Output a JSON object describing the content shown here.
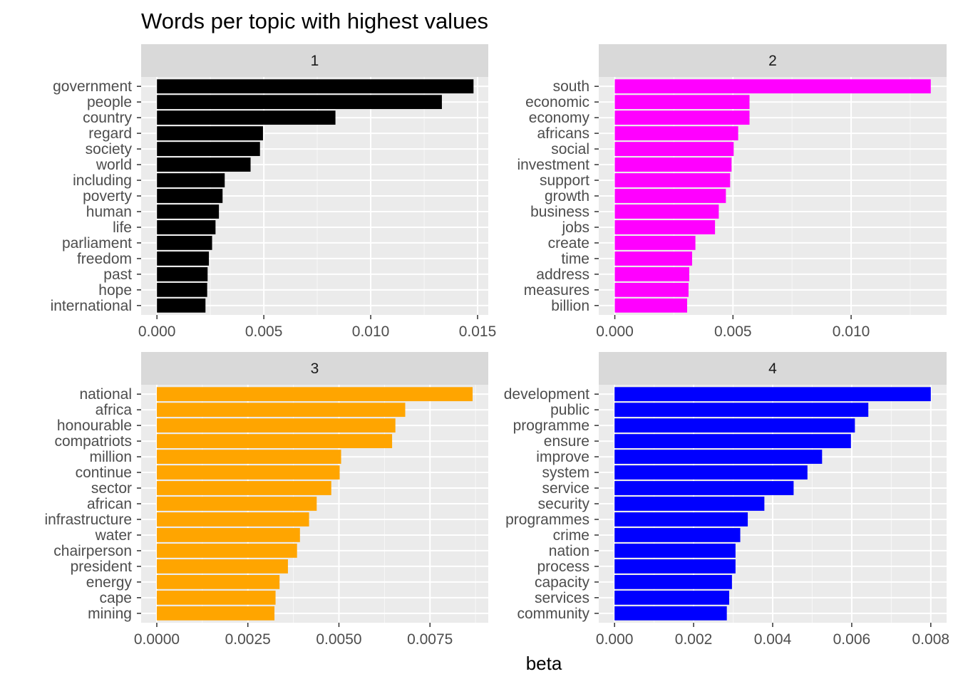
{
  "chart_data": {
    "type": "bar",
    "orientation": "horizontal",
    "title": "Words per topic with highest values",
    "xlabel": "beta",
    "ylabel": "",
    "grid": true,
    "legend": "none",
    "facets": [
      {
        "strip": "1",
        "color": "#000000",
        "xlim": [
          -0.00074,
          0.0155
        ],
        "xticks": [
          0,
          0.005,
          0.01,
          0.015
        ],
        "xtick_labels": [
          "0.000",
          "0.005",
          "0.010",
          "0.015"
        ],
        "categories": [
          "government",
          "people",
          "country",
          "regard",
          "society",
          "world",
          "including",
          "poverty",
          "human",
          "life",
          "parliament",
          "freedom",
          "past",
          "hope",
          "international"
        ],
        "values": [
          0.01481,
          0.01333,
          0.00835,
          0.00496,
          0.00482,
          0.00438,
          0.00317,
          0.00307,
          0.0029,
          0.00274,
          0.00258,
          0.00243,
          0.00237,
          0.00235,
          0.00227
        ]
      },
      {
        "strip": "2",
        "color": "#ff00ff",
        "xlim": [
          -0.00068,
          0.01404
        ],
        "xticks": [
          0,
          0.005,
          0.01
        ],
        "xtick_labels": [
          "0.000",
          "0.005",
          "0.010"
        ],
        "categories": [
          "south",
          "economic",
          "economy",
          "africans",
          "social",
          "investment",
          "support",
          "growth",
          "business",
          "jobs",
          "create",
          "time",
          "address",
          "measures",
          "billion"
        ],
        "values": [
          0.01337,
          0.0057,
          0.0057,
          0.00522,
          0.00503,
          0.00494,
          0.00488,
          0.0047,
          0.0044,
          0.00424,
          0.00341,
          0.00327,
          0.00315,
          0.00312,
          0.00306
        ]
      },
      {
        "strip": "3",
        "color": "#ffa500",
        "xlim": [
          -0.00043,
          0.0091
        ],
        "xticks": [
          0,
          0.0025,
          0.005,
          0.0075
        ],
        "xtick_labels": [
          "0.0000",
          "0.0025",
          "0.0050",
          "0.0075"
        ],
        "categories": [
          "national",
          "africa",
          "honourable",
          "compatriots",
          "million",
          "continue",
          "sector",
          "african",
          "infrastructure",
          "water",
          "chairperson",
          "president",
          "energy",
          "cape",
          "mining"
        ],
        "values": [
          0.00867,
          0.00682,
          0.00655,
          0.00646,
          0.00506,
          0.00502,
          0.00479,
          0.00439,
          0.00418,
          0.00393,
          0.00385,
          0.0036,
          0.00337,
          0.00326,
          0.00323
        ]
      },
      {
        "strip": "4",
        "color": "#0000ff",
        "xlim": [
          -0.0004,
          0.0084
        ],
        "xticks": [
          0,
          0.002,
          0.004,
          0.006,
          0.008
        ],
        "xtick_labels": [
          "0.000",
          "0.002",
          "0.004",
          "0.006",
          "0.008"
        ],
        "categories": [
          "development",
          "public",
          "programme",
          "ensure",
          "improve",
          "system",
          "service",
          "security",
          "programmes",
          "crime",
          "nation",
          "process",
          "capacity",
          "services",
          "community"
        ],
        "values": [
          0.008,
          0.00642,
          0.00608,
          0.00598,
          0.00525,
          0.00488,
          0.00453,
          0.00379,
          0.00337,
          0.00318,
          0.00306,
          0.00306,
          0.00297,
          0.0029,
          0.00284
        ]
      }
    ]
  }
}
